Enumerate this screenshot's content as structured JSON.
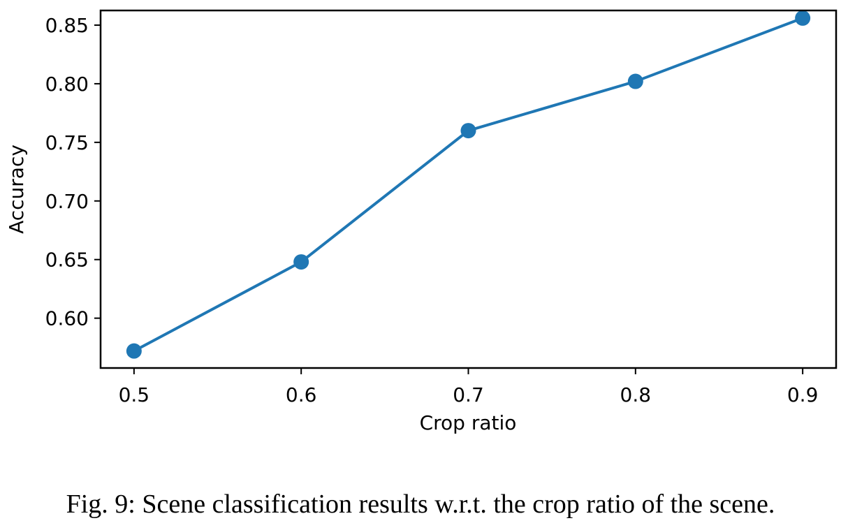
{
  "chart_data": {
    "type": "line",
    "x": [
      0.5,
      0.6,
      0.7,
      0.8,
      0.9
    ],
    "series": [
      {
        "values": [
          0.572,
          0.648,
          0.76,
          0.802,
          0.856
        ]
      }
    ],
    "xticks": [
      "0.5",
      "0.6",
      "0.7",
      "0.8",
      "0.9"
    ],
    "yticks": [
      "0.60",
      "0.65",
      "0.70",
      "0.75",
      "0.80",
      "0.85"
    ],
    "xlabel": "Crop ratio",
    "ylabel": "Accuracy",
    "xlim": [
      0.48,
      0.92
    ],
    "ylim": [
      0.5575,
      0.8625
    ],
    "grid": false,
    "line_color": "#1f77b4"
  },
  "caption": "Fig. 9: Scene classification results w.r.t. the crop ratio of the scene."
}
